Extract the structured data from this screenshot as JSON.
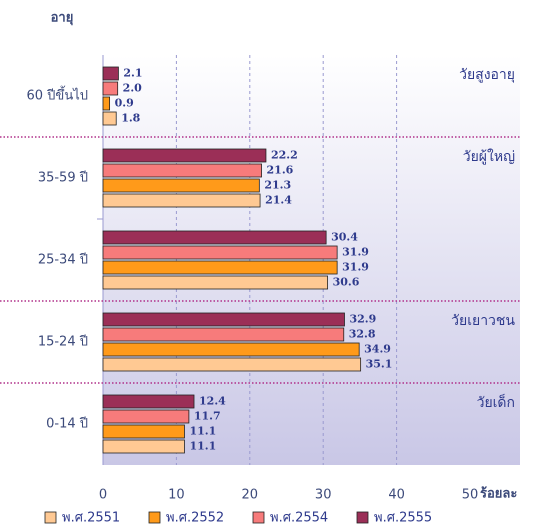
{
  "chart_data": {
    "type": "hbar",
    "y_axis_title": "อายุ",
    "x_axis_label": "ร้อยละ",
    "categories": [
      "60 ปีขึ้นไป",
      "35-59 ปี",
      "25-34 ปี",
      "15-24 ปี",
      "0-14 ปี"
    ],
    "series": [
      {
        "name": "พ.ศ.2551",
        "color": "#ffc993",
        "values": [
          1.8,
          21.4,
          30.6,
          35.1,
          11.1
        ]
      },
      {
        "name": "พ.ศ.2552",
        "color": "#ff9a1a",
        "values": [
          0.9,
          21.3,
          31.9,
          34.9,
          11.1
        ]
      },
      {
        "name": "พ.ศ.2554",
        "color": "#f77b7b",
        "values": [
          2.0,
          21.6,
          31.9,
          32.8,
          11.7
        ],
        "value_labels": [
          "2.0",
          "21.6",
          "31.9",
          "32.8",
          "11.7"
        ]
      },
      {
        "name": "พ.ศ.2555",
        "color": "#9b2f57",
        "values": [
          2.1,
          22.2,
          30.4,
          32.9,
          12.4
        ]
      }
    ],
    "annotations": [
      "วัยสูงอายุ",
      "วัยผู้ใหญ่",
      "วัยเยาวชน",
      "วัยเด็ก"
    ],
    "xlim": [
      0,
      50
    ],
    "xticks": [
      0,
      10,
      20,
      30,
      40,
      50
    ],
    "grid": true
  }
}
